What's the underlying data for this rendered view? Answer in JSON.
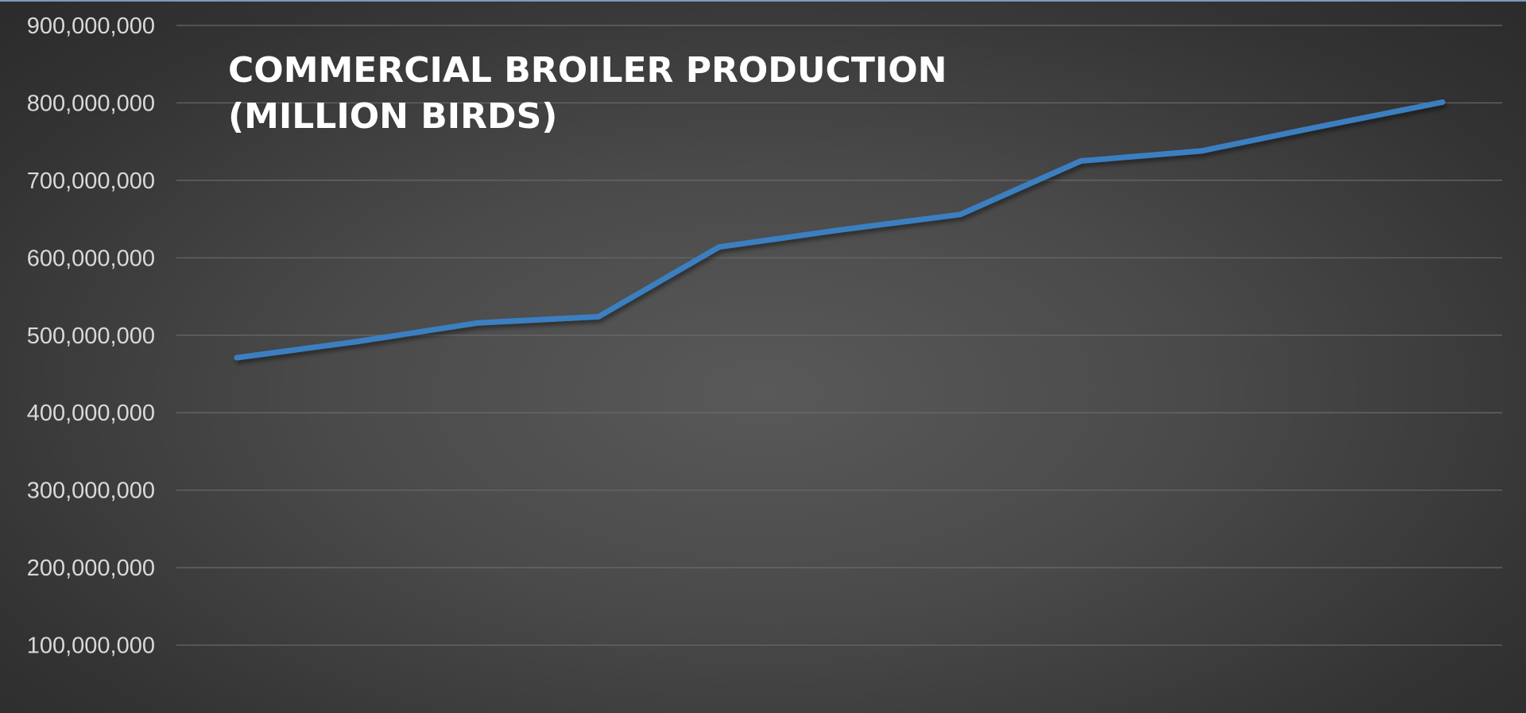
{
  "chart_data": {
    "type": "line",
    "title_lines": [
      "COMMERCIAL BROILER PRODUCTION",
      "(MILLION BIRDS)"
    ],
    "xlabel": "",
    "ylabel": "",
    "ylim": [
      0,
      900000000
    ],
    "y_ticks": [
      100000000,
      200000000,
      300000000,
      400000000,
      500000000,
      600000000,
      700000000,
      800000000,
      900000000
    ],
    "y_tick_labels": [
      "100,000,000",
      "200,000,000",
      "300,000,000",
      "400,000,000",
      "500,000,000",
      "600,000,000",
      "700,000,000",
      "800,000,000",
      "900,000,000"
    ],
    "grid": true,
    "legend": "none",
    "x": [
      1,
      2,
      3,
      4,
      5,
      6,
      7,
      8,
      9,
      10,
      11
    ],
    "series": [
      {
        "color": "#3a7fc1",
        "values": [
          471000000,
          492000000,
          516000000,
          524000000,
          614000000,
          636000000,
          656000000,
          725000000,
          738000000,
          770000000,
          801000000
        ]
      }
    ]
  }
}
